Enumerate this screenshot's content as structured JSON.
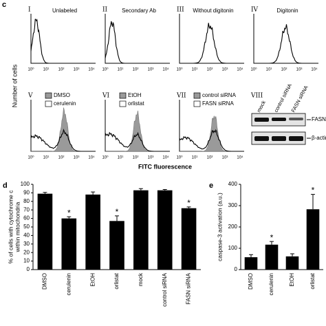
{
  "panel_c": {
    "letter": "c",
    "y_label": "Number of cells",
    "x_label": "FITC fluorescence",
    "x_tick_labels": [
      "10⁰",
      "10¹",
      "10²",
      "10³",
      "10⁴"
    ],
    "subpanels": [
      {
        "numeral": "I",
        "title": "Unlabeled"
      },
      {
        "numeral": "II",
        "title": "Secondary Ab"
      },
      {
        "numeral": "III",
        "title": "Without digitonin"
      },
      {
        "numeral": "IV",
        "title": "Digitonin"
      },
      {
        "numeral": "V",
        "legend": [
          "DMSO",
          "cerulenin"
        ]
      },
      {
        "numeral": "VI",
        "legend": [
          "EtOH",
          "orlistat"
        ]
      },
      {
        "numeral": "VII",
        "legend": [
          "control siRNA",
          "FASN siRNA"
        ]
      }
    ],
    "blot": {
      "numeral": "VIII",
      "lanes": [
        "mock",
        "control siRNA",
        "FASN siRNA"
      ],
      "bands": [
        "FASN",
        "β-actin"
      ]
    }
  },
  "chart_data": [
    {
      "type": "bar",
      "letter": "d",
      "ylabel": [
        "% of cells with cytochrome c",
        "within mitochondria"
      ],
      "categories": [
        "DMSO",
        "cerulenin",
        "EtOH",
        "orlistat",
        "mock",
        "control siRNA",
        "FASN siRNA"
      ],
      "values": [
        89,
        60,
        88,
        57,
        93,
        93,
        72
      ],
      "errors": [
        1.5,
        2,
        3,
        6,
        2,
        1,
        1.5
      ],
      "color": "#000000",
      "annotations": [
        {
          "index": 1,
          "text": "*"
        },
        {
          "index": 3,
          "text": "*"
        },
        {
          "index": 6,
          "text": "*"
        }
      ],
      "ylim": [
        0,
        100
      ],
      "yticks": [
        0,
        10,
        20,
        30,
        40,
        50,
        60,
        70,
        80,
        90,
        100
      ]
    },
    {
      "type": "bar",
      "letter": "e",
      "ylabel": [
        "caspase-3 activation (a.u.)"
      ],
      "categories": [
        "DMSO",
        "cerulenin",
        "EtOH",
        "orlistat"
      ],
      "values": [
        58,
        117,
        62,
        283
      ],
      "errors": [
        12,
        15,
        12,
        70
      ],
      "color": "#000000",
      "annotations": [
        {
          "index": 1,
          "text": "*"
        },
        {
          "index": 3,
          "text": "*"
        }
      ],
      "ylim": [
        0,
        400
      ],
      "yticks": [
        0,
        100,
        200,
        300,
        400
      ]
    }
  ]
}
